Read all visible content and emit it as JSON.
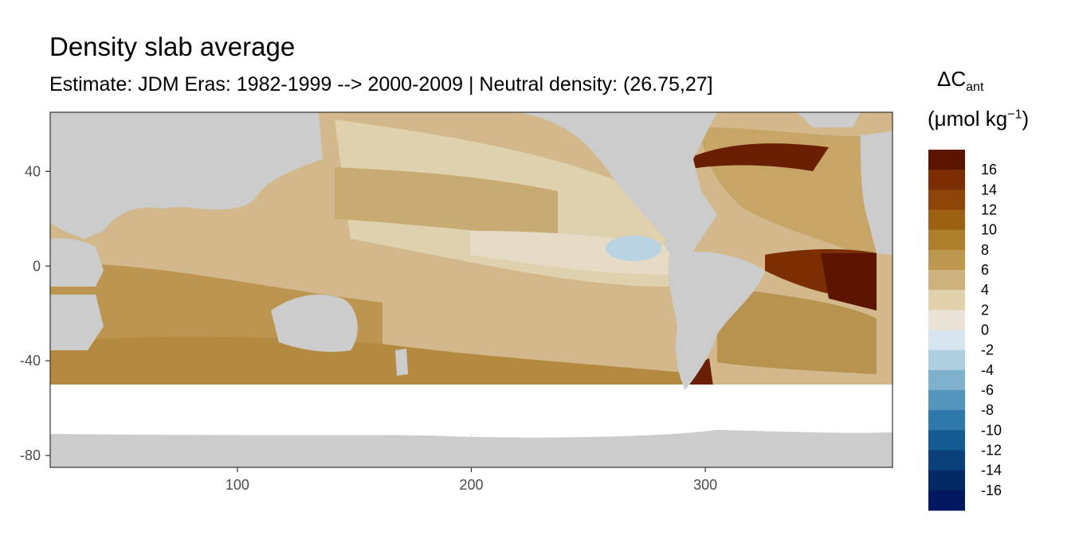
{
  "chart_data": {
    "type": "heatmap",
    "title": "Density slab average",
    "subtitle": "Estimate: JDM Eras: 1982-1999 --> 2000-2009 | Neutral density: (26.75,27]",
    "legend": {
      "title_main": "ΔC",
      "title_sub": "ant",
      "unit_prefix": "(μmol kg",
      "unit_exp": "−1",
      "unit_suffix": ")",
      "placement": "right",
      "labels": [
        "16",
        "14",
        "12",
        "10",
        "8",
        "6",
        "4",
        "2",
        "0",
        "-2",
        "-4",
        "-6",
        "-8",
        "-10",
        "-12",
        "-14",
        "-16"
      ],
      "colors": [
        "#5a1400",
        "#7a2e02",
        "#8e4608",
        "#9c6113",
        "#ad7e2c",
        "#bd974d",
        "#cdb27d",
        "#e0d0ab",
        "#ebe3d7",
        "#d7e6ee",
        "#aecfe0",
        "#7fb0cd",
        "#5495bd",
        "#2f78aa",
        "#145b93",
        "#0a3f7a",
        "#042a66",
        "#021760"
      ]
    },
    "x_ticks": [
      100,
      200,
      300
    ],
    "y_ticks": [
      40,
      0,
      -40,
      -80
    ],
    "xlim": [
      20,
      380
    ],
    "ylim": [
      -85,
      65
    ],
    "grid": true,
    "land_color": "#cccccc",
    "no_data_color": "#ffffff"
  }
}
